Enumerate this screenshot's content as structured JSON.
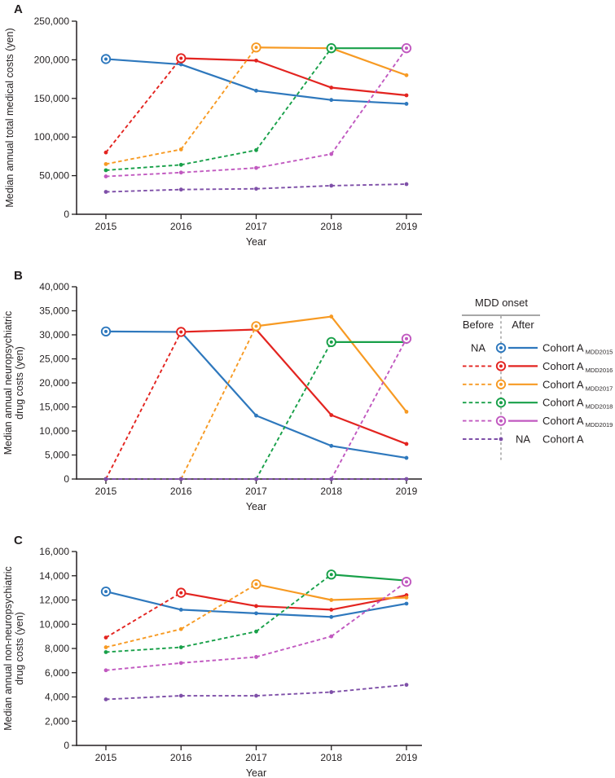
{
  "figure_type": "three-panel line chart figure",
  "colors": {
    "text": "#231f20",
    "axis": "#231f20",
    "legend_rule": "#8a8a8a",
    "mdd2015": "#2e78bd",
    "mdd2016": "#e32420",
    "mdd2017": "#f79a23",
    "mdd2018": "#18a049",
    "mdd2019": "#c159c0",
    "na": "#7e4fa8"
  },
  "series_meta": [
    {
      "id": "mdd2015",
      "label": "Cohort A",
      "subscript": "MDD2015",
      "color": "#2e78bd",
      "onset_year": 2015
    },
    {
      "id": "mdd2016",
      "label": "Cohort A",
      "subscript": "MDD2016",
      "color": "#e32420",
      "onset_year": 2016
    },
    {
      "id": "mdd2017",
      "label": "Cohort A",
      "subscript": "MDD2017",
      "color": "#f79a23",
      "onset_year": 2017
    },
    {
      "id": "mdd2018",
      "label": "Cohort A",
      "subscript": "MDD2018",
      "color": "#18a049",
      "onset_year": 2018
    },
    {
      "id": "mdd2019",
      "label": "Cohort A",
      "subscript": "MDD2019",
      "color": "#c159c0",
      "onset_year": 2019
    },
    {
      "id": "na",
      "label": "Cohort A",
      "subscript": "",
      "color": "#7e4fa8",
      "onset_year": null
    }
  ],
  "legend": {
    "title": "MDD onset",
    "before_label": "Before",
    "after_label": "After",
    "na_label": "NA"
  },
  "chart_data": [
    {
      "panel": "A",
      "type": "line",
      "title": "",
      "xlabel": "Year",
      "ylabel": "Median annual total medical costs (yen)",
      "ylabel_lines": [
        "Median annual total medical costs (yen)"
      ],
      "ylim": [
        0,
        250000
      ],
      "ytick_step": 50000,
      "legend_position": "right of panel B",
      "grid": false,
      "categories": [
        2015,
        2016,
        2017,
        2018,
        2019
      ],
      "series": [
        {
          "id": "mdd2015",
          "name": "Cohort A MDD2015",
          "values": [
            201000,
            194000,
            160000,
            148000,
            143000
          ]
        },
        {
          "id": "mdd2016",
          "name": "Cohort A MDD2016",
          "values": [
            80000,
            202000,
            199000,
            164000,
            154000
          ]
        },
        {
          "id": "mdd2017",
          "name": "Cohort A MDD2017",
          "values": [
            65000,
            84000,
            216000,
            215000,
            180000
          ]
        },
        {
          "id": "mdd2018",
          "name": "Cohort A MDD2018",
          "values": [
            57000,
            64000,
            83000,
            215000,
            215000
          ]
        },
        {
          "id": "mdd2019",
          "name": "Cohort A MDD2019",
          "values": [
            49000,
            54000,
            60000,
            78000,
            215000
          ]
        },
        {
          "id": "na",
          "name": "Cohort A",
          "values": [
            29000,
            32000,
            33000,
            37000,
            39000
          ]
        }
      ]
    },
    {
      "panel": "B",
      "type": "line",
      "title": "",
      "xlabel": "Year",
      "ylabel": "Median annual neuropsychiatric drug costs (yen)",
      "ylabel_lines": [
        "Median annual neuropsychiatric",
        "drug costs (yen)"
      ],
      "ylim": [
        0,
        40000
      ],
      "ytick_step": 5000,
      "grid": false,
      "categories": [
        2015,
        2016,
        2017,
        2018,
        2019
      ],
      "series": [
        {
          "id": "mdd2015",
          "name": "Cohort A MDD2015",
          "values": [
            30700,
            30600,
            13200,
            6900,
            4400
          ]
        },
        {
          "id": "mdd2016",
          "name": "Cohort A MDD2016",
          "values": [
            0,
            30600,
            31100,
            13300,
            7300
          ]
        },
        {
          "id": "mdd2017",
          "name": "Cohort A MDD2017",
          "values": [
            0,
            0,
            31800,
            33800,
            14000
          ]
        },
        {
          "id": "mdd2018",
          "name": "Cohort A MDD2018",
          "values": [
            0,
            0,
            0,
            28500,
            28500
          ]
        },
        {
          "id": "mdd2019",
          "name": "Cohort A MDD2019",
          "values": [
            0,
            0,
            0,
            0,
            29200
          ]
        },
        {
          "id": "na",
          "name": "Cohort A",
          "values": [
            0,
            0,
            0,
            0,
            0
          ]
        }
      ]
    },
    {
      "panel": "C",
      "type": "line",
      "title": "",
      "xlabel": "Year",
      "ylabel": "Median annual non-neuropsychiatric drug costs (yen)",
      "ylabel_lines": [
        "Median annual non-neuropsychiatric",
        "drug costs (yen)"
      ],
      "ylim": [
        0,
        16000
      ],
      "ytick_step": 2000,
      "grid": false,
      "categories": [
        2015,
        2016,
        2017,
        2018,
        2019
      ],
      "series": [
        {
          "id": "mdd2015",
          "name": "Cohort A MDD2015",
          "values": [
            12700,
            11200,
            10900,
            10600,
            11700
          ]
        },
        {
          "id": "mdd2016",
          "name": "Cohort A MDD2016",
          "values": [
            8900,
            12600,
            11500,
            11200,
            12400
          ]
        },
        {
          "id": "mdd2017",
          "name": "Cohort A MDD2017",
          "values": [
            8100,
            9600,
            13300,
            12000,
            12200
          ]
        },
        {
          "id": "mdd2018",
          "name": "Cohort A MDD2018",
          "values": [
            7700,
            8100,
            9400,
            14100,
            13600
          ]
        },
        {
          "id": "mdd2019",
          "name": "Cohort A MDD2019",
          "values": [
            6200,
            6800,
            7300,
            9000,
            13500
          ]
        },
        {
          "id": "na",
          "name": "Cohort A",
          "values": [
            3800,
            4100,
            4100,
            4400,
            5000
          ]
        }
      ]
    }
  ]
}
